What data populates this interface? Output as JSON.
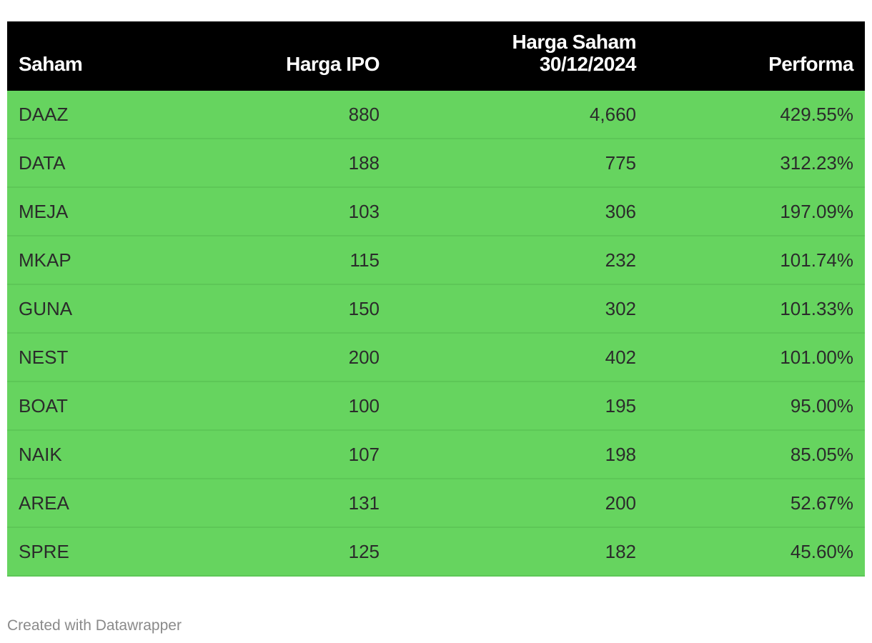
{
  "table": {
    "headers": [
      "Saham",
      "Harga IPO",
      "Harga Saham 30/12/2024",
      "Performa"
    ],
    "rows": [
      [
        "DAAZ",
        "880",
        "4,660",
        "429.55%"
      ],
      [
        "DATA",
        "188",
        "775",
        "312.23%"
      ],
      [
        "MEJA",
        "103",
        "306",
        "197.09%"
      ],
      [
        "MKAP",
        "115",
        "232",
        "101.74%"
      ],
      [
        "GUNA",
        "150",
        "302",
        "101.33%"
      ],
      [
        "NEST",
        "200",
        "402",
        "101.00%"
      ],
      [
        "BOAT",
        "100",
        "195",
        "95.00%"
      ],
      [
        "NAIK",
        "107",
        "198",
        "85.05%"
      ],
      [
        "AREA",
        "131",
        "200",
        "52.67%"
      ],
      [
        "SPRE",
        "125",
        "182",
        "45.60%"
      ]
    ]
  },
  "footer": {
    "credit": "Created with Datawrapper"
  }
}
